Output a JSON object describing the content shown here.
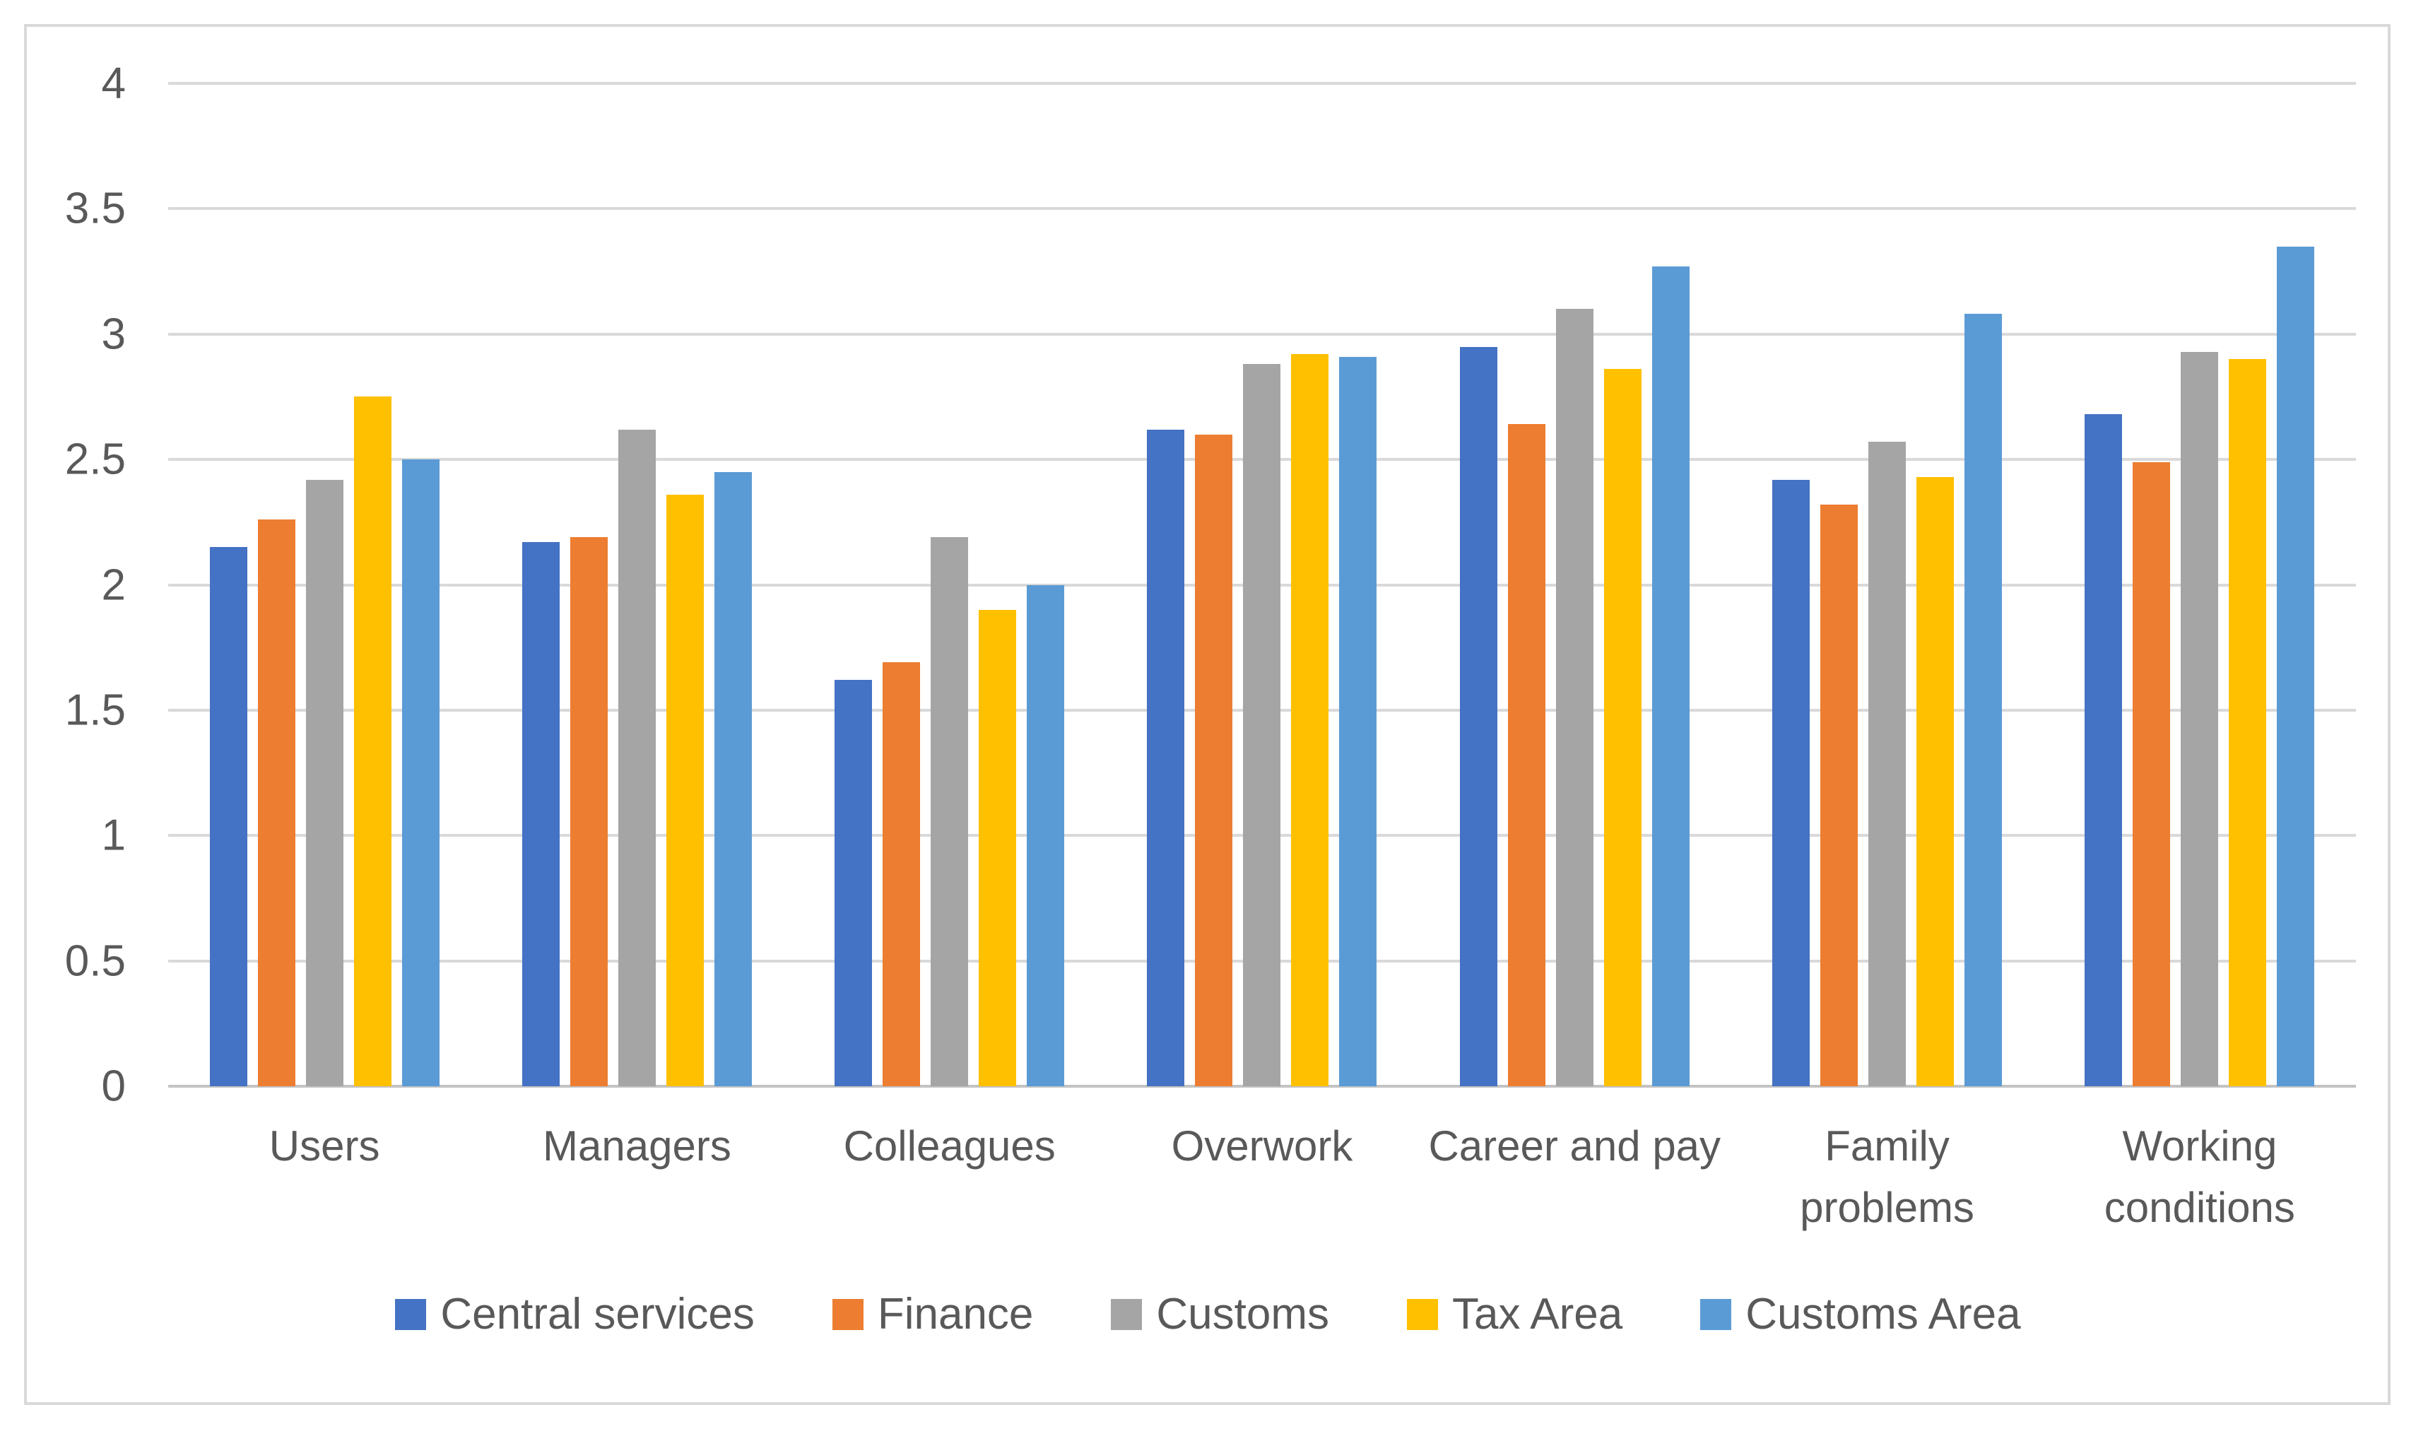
{
  "figure": {
    "background": "#FFFFFF",
    "border_color": "#D9D9D9",
    "text_color": "#595959",
    "gridline_color": "#D9D9D9",
    "axis_line_color": "#C3C3C3"
  },
  "chart_data": {
    "type": "bar",
    "title": "",
    "categories": [
      "Users",
      "Managers",
      "Colleagues",
      "Overwork",
      "Career and pay",
      "Family problems",
      "Working conditions"
    ],
    "series": [
      {
        "name": "Central services",
        "color": "#4472C4",
        "values": [
          2.15,
          2.17,
          1.62,
          2.62,
          2.95,
          2.42,
          2.68
        ]
      },
      {
        "name": "Finance",
        "color": "#ED7D31",
        "values": [
          2.26,
          2.19,
          1.69,
          2.6,
          2.64,
          2.32,
          2.49
        ]
      },
      {
        "name": "Customs",
        "color": "#A5A5A5",
        "values": [
          2.42,
          2.62,
          2.19,
          2.88,
          3.1,
          2.57,
          2.93
        ]
      },
      {
        "name": "Tax Area",
        "color": "#FFC000",
        "values": [
          2.75,
          2.36,
          1.9,
          2.92,
          2.86,
          2.43,
          2.9
        ]
      },
      {
        "name": "Customs Area",
        "color": "#5B9BD5",
        "values": [
          2.5,
          2.45,
          2.0,
          2.91,
          3.27,
          3.08,
          3.35
        ]
      }
    ],
    "ylim": [
      0,
      4
    ],
    "ytick_step": 0.5,
    "yticks": [
      "4",
      "3.5",
      "3",
      "2.5",
      "2",
      "1.5",
      "1",
      "0.5",
      "0"
    ],
    "grid": true,
    "legend_position": "bottom"
  }
}
